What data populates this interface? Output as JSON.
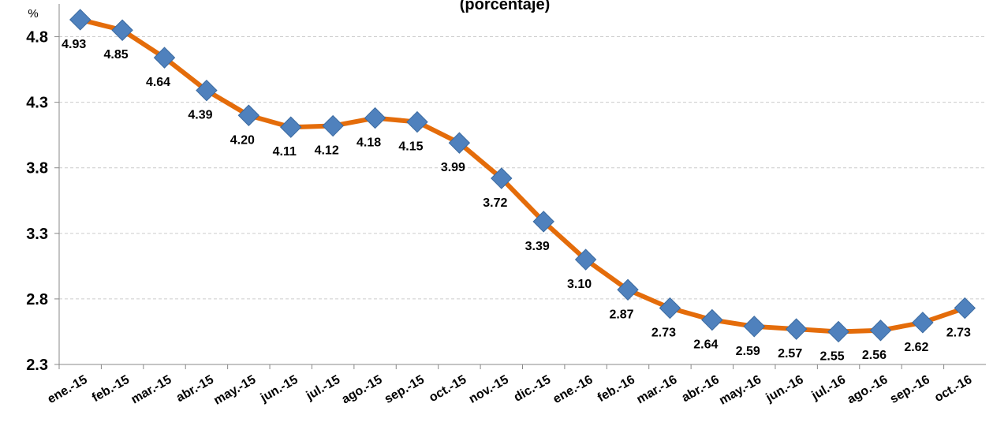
{
  "chart_data": {
    "type": "line",
    "title": "(porcentaje)",
    "y_unit": "%",
    "categories": [
      "ene.-15",
      "feb.-15",
      "mar.-15",
      "abr.-15",
      "may.-15",
      "jun.-15",
      "jul.-15",
      "ago.-15",
      "sep.-15",
      "oct.-15",
      "nov.-15",
      "dic.-15",
      "ene.-16",
      "feb.-16",
      "mar.-16",
      "abr.-16",
      "may.-16",
      "jun.-16",
      "jul.-16",
      "ago.-16",
      "sep.-16",
      "oct.-16"
    ],
    "series": [
      {
        "name": "%",
        "color": "#e46c0a",
        "marker_color": "#4f81bd",
        "values": [
          4.93,
          4.85,
          4.64,
          4.39,
          4.2,
          4.11,
          4.12,
          4.18,
          4.15,
          3.99,
          3.72,
          3.39,
          3.1,
          2.87,
          2.73,
          2.64,
          2.59,
          2.57,
          2.55,
          2.56,
          2.62,
          2.73
        ],
        "value_labels": [
          "4.93",
          "4.85",
          "4.64",
          "4.39",
          "4.20",
          "4.11",
          "4.12",
          "4.18",
          "4.15",
          "3.99",
          "3.72",
          "3.39",
          "3.10",
          "2.87",
          "2.73",
          "2.64",
          "2.59",
          "2.57",
          "2.55",
          "2.56",
          "2.62",
          "2.73"
        ]
      }
    ],
    "ylim": [
      2.3,
      5.05
    ],
    "yticks": [
      2.3,
      2.8,
      3.3,
      3.8,
      4.3,
      4.8
    ],
    "grid": true
  }
}
